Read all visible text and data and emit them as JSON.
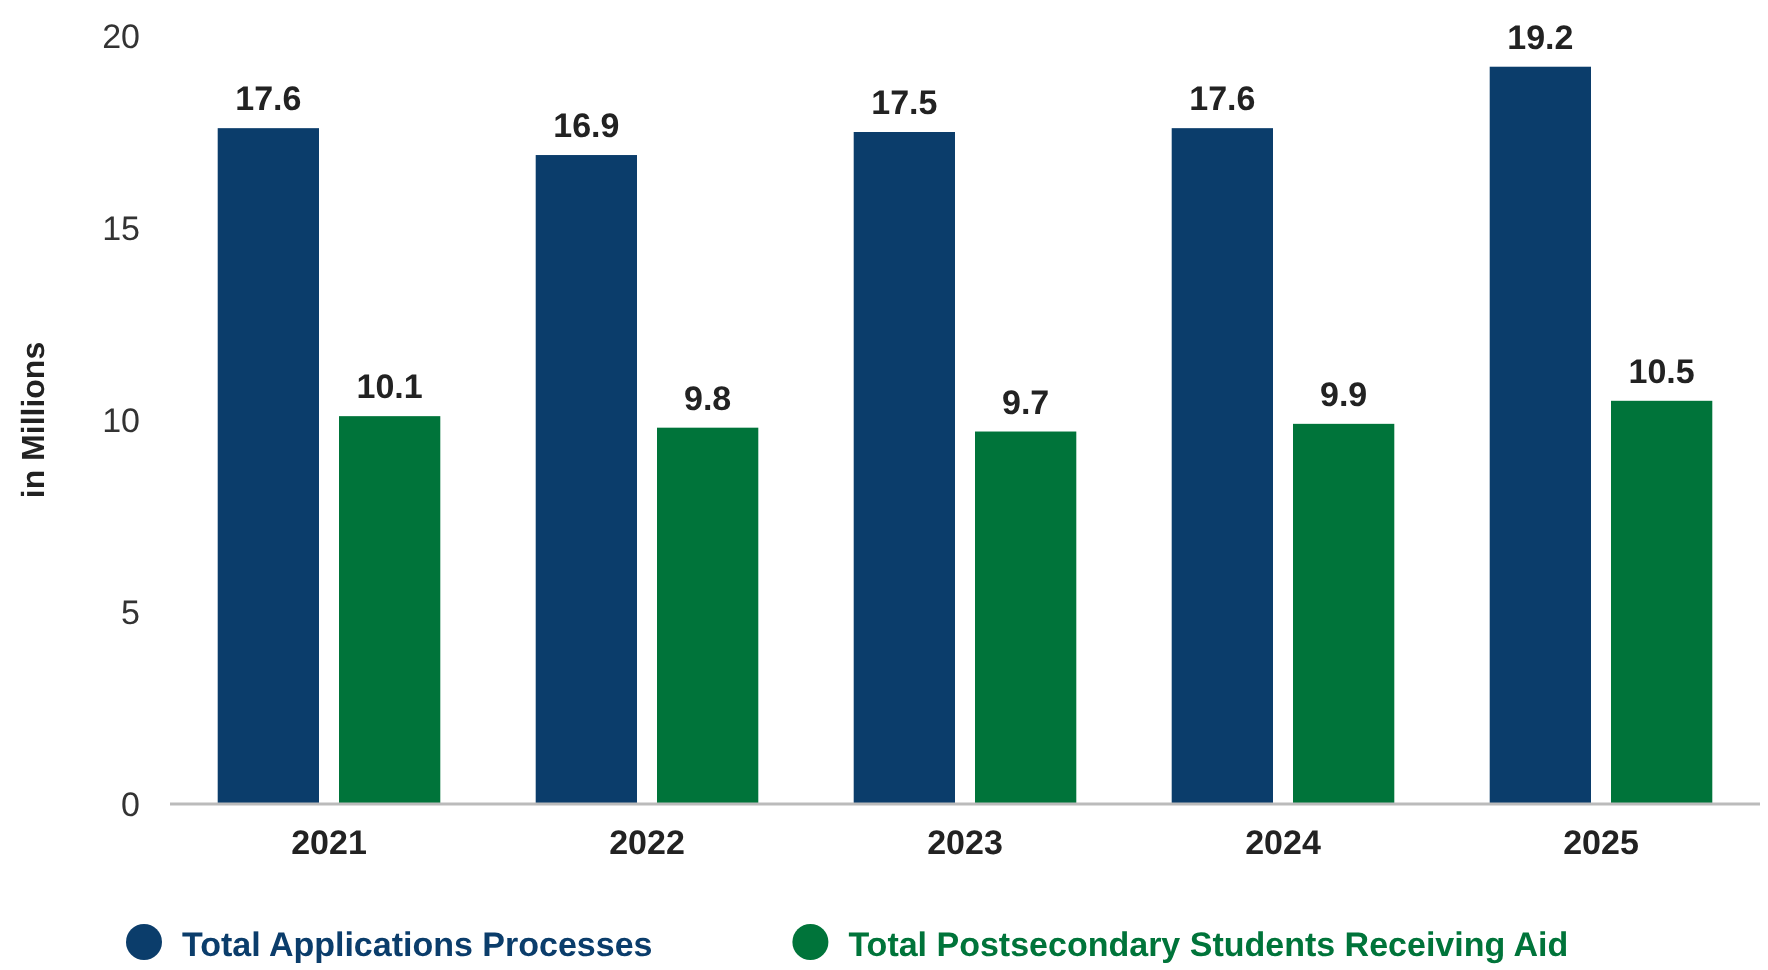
{
  "chart_data": {
    "type": "bar",
    "ylabel": "in Millions",
    "categories": [
      "2021",
      "2022",
      "2023",
      "2024",
      "2025"
    ],
    "series": [
      {
        "name": "Total Applications Processes",
        "color": "#0b3d6b",
        "values": [
          17.6,
          16.9,
          17.5,
          17.6,
          19.2
        ]
      },
      {
        "name": "Total Postsecondary Students Receiving Aid",
        "color": "#00743a",
        "values": [
          10.1,
          9.8,
          9.7,
          9.9,
          10.5
        ]
      }
    ],
    "ylim": [
      0,
      20
    ],
    "yticks": [
      0,
      5,
      10,
      15,
      20
    ],
    "data_labels": true,
    "legend": "bottom",
    "grid": false
  }
}
